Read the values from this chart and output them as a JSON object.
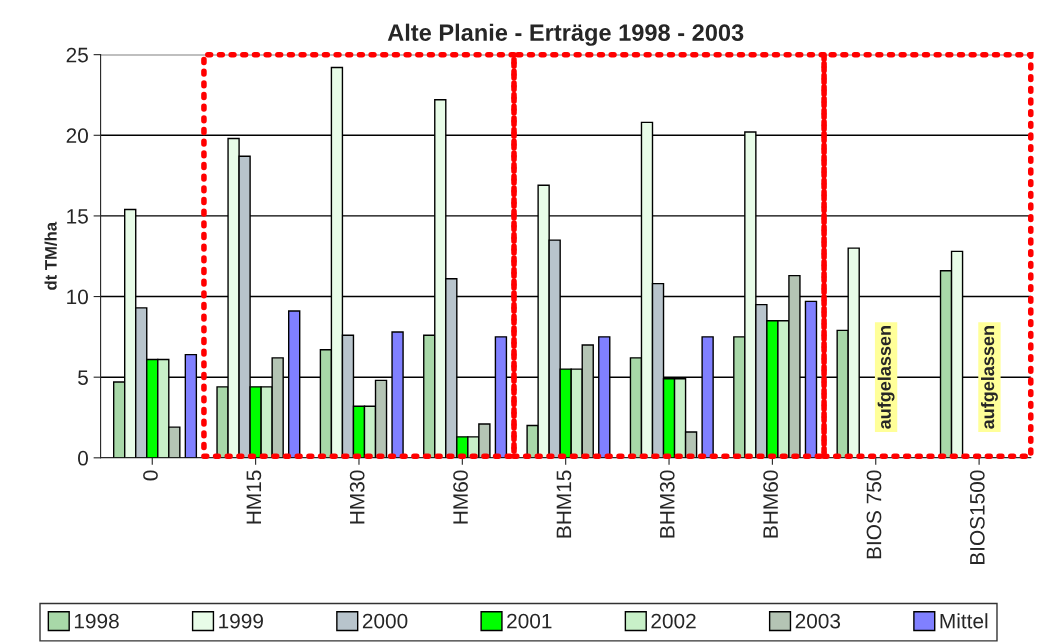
{
  "chart_data": {
    "type": "bar",
    "title": "Alte Planie - Erträge 1998 - 2003",
    "ylabel": "dt TM/ha",
    "categories": [
      "0",
      "HM15",
      "HM30",
      "HM60",
      "BHM15",
      "BHM30",
      "BHM60",
      "BIOS 750",
      "BIOS1500"
    ],
    "series": [
      {
        "name": "1998",
        "color": "#a8d8a8",
        "values": [
          4.7,
          4.4,
          6.7,
          7.6,
          2.0,
          6.2,
          7.5,
          7.9,
          11.6
        ]
      },
      {
        "name": "1999",
        "color": "#e8fce8",
        "values": [
          15.4,
          19.8,
          24.2,
          22.2,
          16.9,
          20.8,
          20.2,
          13.0,
          12.8
        ]
      },
      {
        "name": "2000",
        "color": "#b8c4cc",
        "values": [
          9.3,
          18.7,
          7.6,
          11.1,
          13.5,
          10.8,
          9.5,
          null,
          null
        ]
      },
      {
        "name": "2001",
        "color": "#00ff00",
        "values": [
          6.1,
          4.4,
          3.2,
          1.3,
          5.5,
          4.9,
          8.5,
          null,
          null
        ]
      },
      {
        "name": "2002",
        "color": "#c8f0c8",
        "values": [
          6.1,
          4.4,
          3.2,
          1.3,
          5.5,
          4.9,
          8.5,
          null,
          null
        ]
      },
      {
        "name": "2003",
        "color": "#b4c4b4",
        "values": [
          1.9,
          6.2,
          4.8,
          2.1,
          7.0,
          1.6,
          11.3,
          null,
          null
        ]
      },
      {
        "name": "Mittel",
        "color": "#8080ff",
        "values": [
          6.4,
          9.1,
          7.8,
          7.5,
          7.5,
          7.5,
          9.7,
          null,
          null
        ]
      }
    ],
    "annotations": [
      "aufgelassen",
      "aufgelassen"
    ],
    "ylim": [
      0,
      25
    ],
    "yticks": [
      0,
      5,
      10,
      15,
      20,
      25
    ],
    "grid": "y",
    "legend": "bottom"
  }
}
